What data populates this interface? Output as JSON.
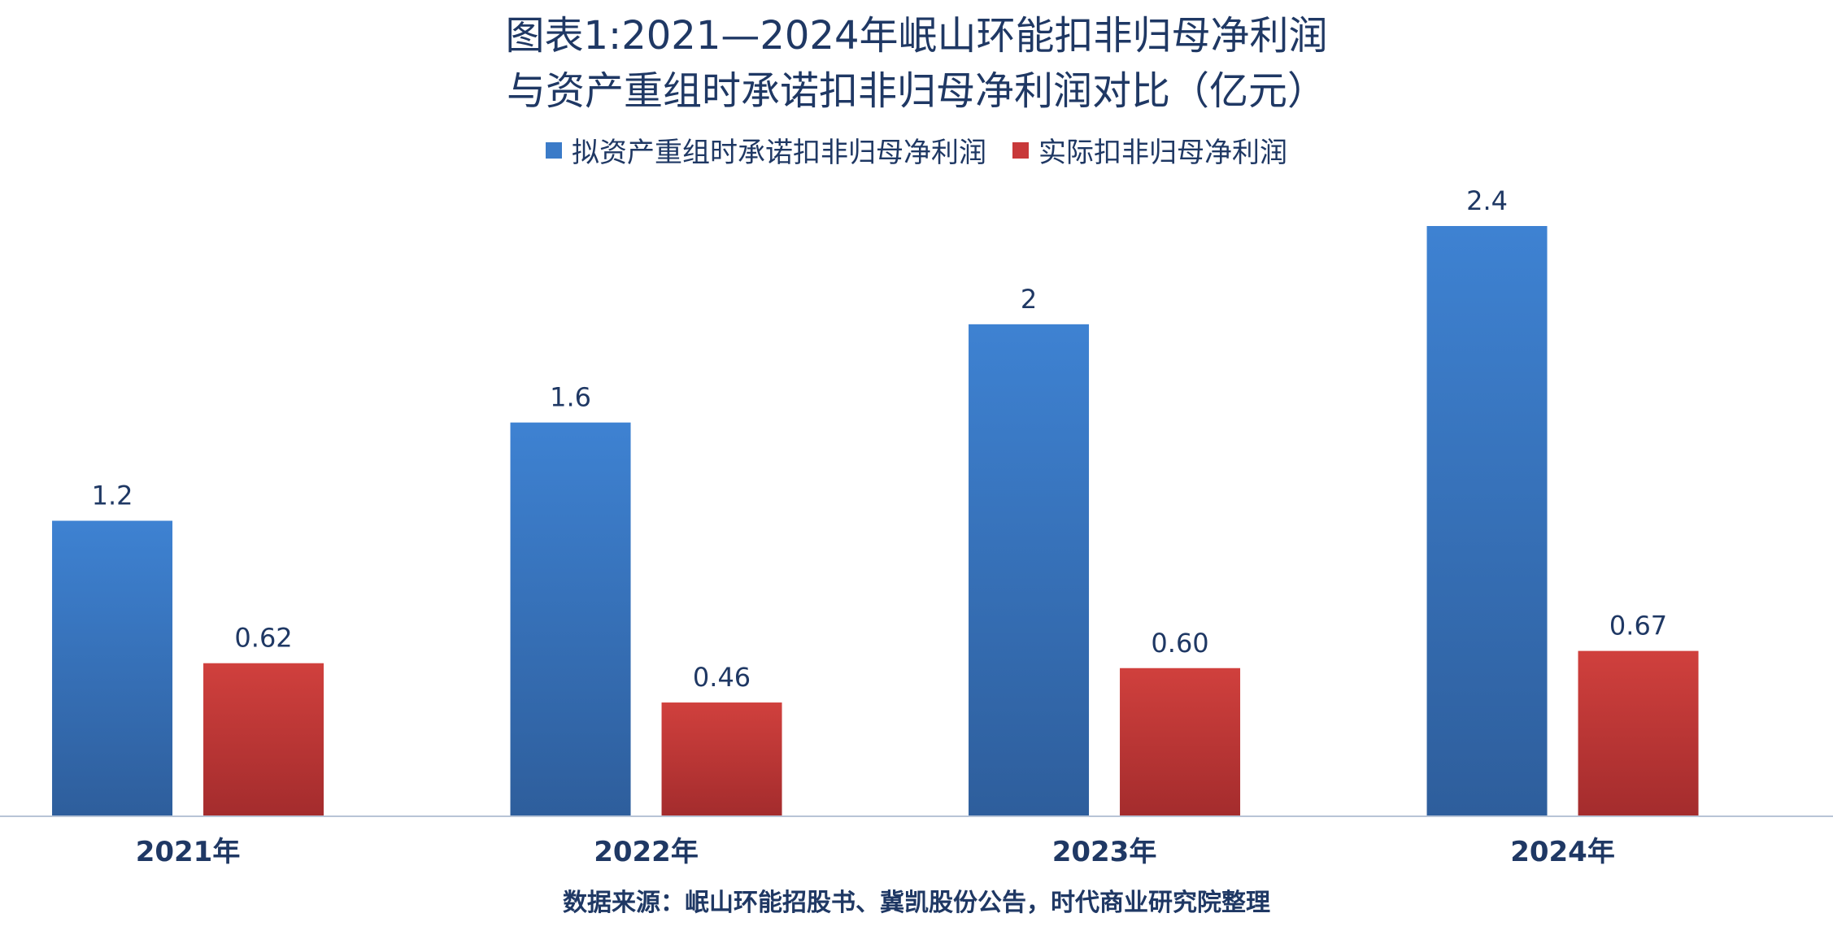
{
  "title": {
    "line1": "图表1:2021—2024年岷山环能扣非归母净利润",
    "line2": "与资产重组时承诺扣非归母净利润对比（亿元）"
  },
  "colors": {
    "promised": "#3b7bc8",
    "actual": "#c8393a",
    "axis": "#b8c4d6",
    "text": "#1f3864"
  },
  "source": "数据来源：岷山环能招股书、冀凯股份公告，时代商业研究院整理",
  "chart_data": {
    "type": "bar",
    "categories": [
      "2021年",
      "2022年",
      "2023年",
      "2024年"
    ],
    "series": [
      {
        "name": "拟资产重组时承诺扣非归母净利润",
        "values": [
          1.2,
          1.6,
          2,
          2.4
        ],
        "labels": [
          "1.2",
          "1.6",
          "2",
          "2.4"
        ]
      },
      {
        "name": "实际扣非归母净利润",
        "values": [
          0.62,
          0.46,
          0.6,
          0.67
        ],
        "labels": [
          "0.62",
          "0.46",
          "0.60",
          "0.67"
        ]
      }
    ],
    "ylim": [
      0,
      2.4
    ],
    "grid": false,
    "legend": "top-center"
  }
}
